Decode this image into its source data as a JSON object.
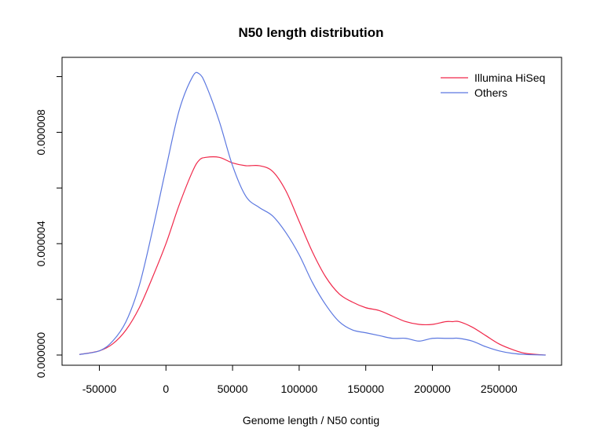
{
  "chart_data": {
    "type": "line",
    "title": "N50 length distribution",
    "xlabel": "Genome length / N50 contig",
    "ylabel": "",
    "xlim": [
      -65000,
      285000
    ],
    "ylim": [
      0,
      1.01e-05
    ],
    "x_ticks": [
      -50000,
      0,
      50000,
      100000,
      150000,
      200000,
      250000
    ],
    "x_tick_labels": [
      "-50000",
      "0",
      "50000",
      "100000",
      "150000",
      "200000",
      "250000"
    ],
    "y_ticks": [
      0,
      4e-06,
      8e-06
    ],
    "y_tick_labels": [
      "0.000000",
      "0.000004",
      "0.000008"
    ],
    "y_minor_ticks": [
      2e-06,
      6e-06,
      1e-05
    ],
    "grid": false,
    "legend_position": "top-right",
    "x": [
      -65000,
      -50000,
      -40000,
      -30000,
      -20000,
      -10000,
      0,
      10000,
      20000,
      25000,
      30000,
      40000,
      50000,
      60000,
      70000,
      80000,
      90000,
      100000,
      110000,
      120000,
      130000,
      140000,
      150000,
      160000,
      170000,
      180000,
      190000,
      200000,
      210000,
      215000,
      220000,
      230000,
      240000,
      250000,
      260000,
      270000,
      285000
    ],
    "series": [
      {
        "name": "Illumina HiSeq",
        "color": "#f0284a",
        "values": [
          2e-08,
          1.5e-07,
          4e-07,
          9e-07,
          1.7e-06,
          2.8e-06,
          4e-06,
          5.4e-06,
          6.6e-06,
          7e-06,
          7.1e-06,
          7.1e-06,
          6.9e-06,
          6.8e-06,
          6.8e-06,
          6.6e-06,
          5.9e-06,
          4.8e-06,
          3.7e-06,
          2.8e-06,
          2.2e-06,
          1.9e-06,
          1.7e-06,
          1.6e-06,
          1.4e-06,
          1.2e-06,
          1.1e-06,
          1.1e-06,
          1.2e-06,
          1.2e-06,
          1.2e-06,
          1e-06,
          7e-07,
          4e-07,
          2e-07,
          6e-08,
          0.0
        ]
      },
      {
        "name": "Others",
        "color": "#5c78e0",
        "values": [
          2e-08,
          1.5e-07,
          5e-07,
          1.2e-06,
          2.5e-06,
          4.5e-06,
          6.7e-06,
          8.8e-06,
          1e-05,
          1.01e-05,
          9.7e-06,
          8.4e-06,
          6.8e-06,
          5.7e-06,
          5.3e-06,
          5e-06,
          4.4e-06,
          3.6e-06,
          2.6e-06,
          1.8e-06,
          1.2e-06,
          9e-07,
          8e-07,
          7e-07,
          6e-07,
          6e-07,
          5e-07,
          6e-07,
          6e-07,
          6e-07,
          6e-07,
          5e-07,
          3e-07,
          1.5e-07,
          6e-08,
          2e-08,
          0.0
        ]
      }
    ]
  }
}
